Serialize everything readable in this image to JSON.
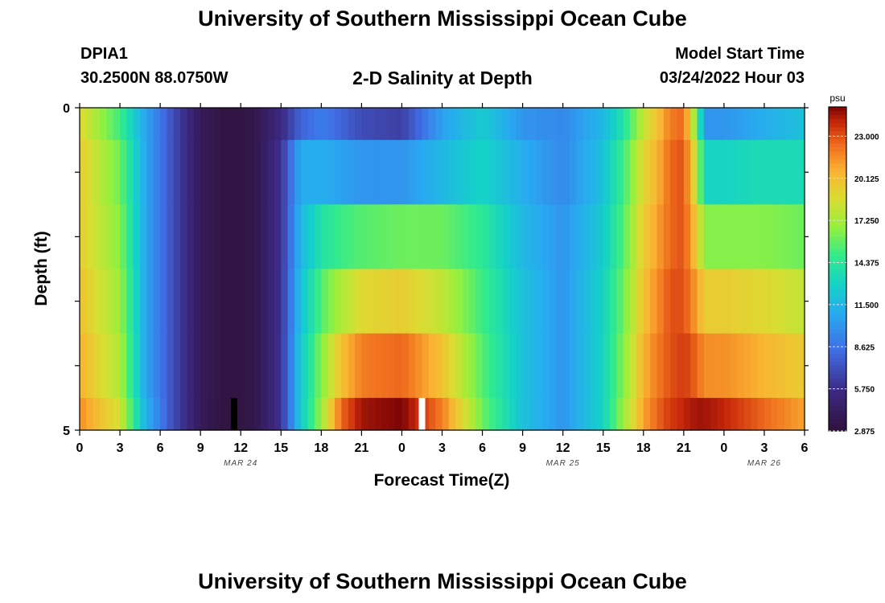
{
  "header": {
    "title": "University of Southern Mississippi Ocean Cube",
    "station": "DPIA1",
    "coords": "30.2500N  88.0750W",
    "chart_title": "2-D Salinity at Depth",
    "start_label": "Model Start Time",
    "start_value": "03/24/2022 Hour 03"
  },
  "footer": {
    "title": "University of Southern Mississippi Ocean Cube"
  },
  "chart_data": {
    "type": "heatmap",
    "title": "2-D Salinity at Depth",
    "xlabel": "Forecast Time(Z)",
    "ylabel": "Depth (ft)",
    "x_range_hours": [
      0,
      54
    ],
    "x_tick_labels": [
      "0",
      "3",
      "6",
      "9",
      "12",
      "15",
      "18",
      "21",
      "0",
      "3",
      "6",
      "9",
      "12",
      "15",
      "18",
      "21",
      "0",
      "3",
      "6"
    ],
    "date_labels": [
      {
        "label": "MAR 24",
        "hour": 12
      },
      {
        "label": "MAR 25",
        "hour": 36
      },
      {
        "label": "MAR 26",
        "hour": 51
      }
    ],
    "y_range_ft": [
      0,
      5
    ],
    "y_tick_labels": [
      "0",
      "5"
    ],
    "depth_levels_ft": [
      0,
      0.5,
      1.5,
      2.5,
      3.5,
      4.5
    ],
    "colorbar": {
      "unit": "psu",
      "min": 2.875,
      "max": 25.0,
      "ticks": [
        "23.000",
        "20.125",
        "17.250",
        "14.375",
        "11.500",
        "8.625",
        "5.750",
        "2.875"
      ]
    },
    "time_hours": [
      0,
      3,
      5,
      7,
      9,
      11,
      13,
      15,
      16.5,
      18,
      19.5,
      21,
      24,
      27,
      30,
      33,
      36,
      39,
      40.5,
      42,
      43,
      44,
      45,
      46,
      46.5,
      48,
      51,
      54
    ],
    "salinity": [
      [
        19.0,
        15.0,
        10.5,
        7.0,
        4.0,
        3.1,
        3.5,
        5.5,
        8.0,
        9.0,
        8.0,
        7.0,
        6.5,
        10.5,
        12.5,
        10.0,
        9.5,
        11.5,
        14.0,
        18.0,
        20.0,
        22.0,
        22.5,
        16.0,
        10.0,
        10.0,
        11.0,
        12.0
      ],
      [
        19.5,
        16.0,
        10.5,
        7.0,
        4.0,
        3.1,
        3.5,
        6.0,
        11.0,
        11.0,
        10.5,
        10.0,
        10.0,
        11.5,
        13.0,
        11.0,
        9.5,
        12.0,
        15.0,
        19.0,
        20.5,
        22.5,
        23.0,
        18.0,
        13.0,
        13.0,
        13.5,
        13.5
      ],
      [
        19.5,
        16.5,
        10.5,
        7.0,
        4.0,
        3.1,
        3.5,
        6.0,
        11.5,
        14.0,
        15.0,
        15.5,
        16.0,
        16.0,
        14.5,
        11.5,
        10.0,
        12.5,
        15.5,
        19.5,
        21.0,
        22.5,
        23.0,
        19.5,
        16.5,
        16.5,
        16.5,
        16.0
      ],
      [
        20.0,
        17.0,
        10.5,
        7.0,
        4.0,
        3.1,
        3.5,
        6.0,
        12.0,
        15.5,
        17.5,
        19.0,
        19.5,
        18.0,
        15.0,
        12.0,
        10.0,
        13.0,
        16.0,
        20.0,
        21.5,
        23.0,
        23.0,
        21.0,
        19.5,
        19.5,
        19.0,
        18.0
      ],
      [
        20.5,
        17.5,
        10.5,
        7.0,
        4.0,
        3.1,
        3.5,
        6.0,
        12.5,
        16.5,
        20.0,
        22.0,
        22.5,
        20.0,
        15.5,
        12.0,
        10.0,
        13.0,
        16.5,
        20.5,
        22.0,
        23.0,
        23.5,
        22.5,
        21.5,
        21.5,
        20.5,
        19.5
      ],
      [
        21.5,
        18.5,
        11.0,
        7.0,
        4.0,
        3.0,
        3.5,
        6.0,
        12.5,
        17.0,
        22.5,
        24.5,
        25.0,
        22.0,
        16.0,
        12.0,
        10.0,
        13.0,
        17.0,
        21.0,
        22.5,
        23.5,
        24.0,
        24.5,
        24.5,
        24.0,
        22.5,
        21.0
      ]
    ],
    "markers": [
      {
        "color": "#000000",
        "hour": 11.5,
        "depth_ft_from": 4.5,
        "depth_ft_to": 5
      },
      {
        "color": "#ffffff",
        "hour": 25.5,
        "depth_ft_from": 4.5,
        "depth_ft_to": 5
      }
    ]
  }
}
